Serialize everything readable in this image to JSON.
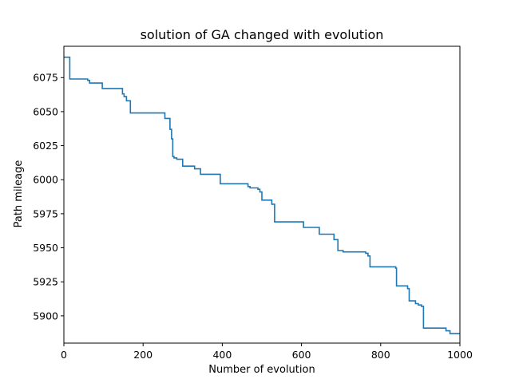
{
  "chart_data": {
    "type": "line",
    "title": "solution of GA changed with evolution",
    "xlabel": "Number of evolution",
    "ylabel": "Path mileage",
    "xlim": [
      0,
      1000
    ],
    "ylim": [
      5880,
      6098
    ],
    "xticks": [
      0,
      200,
      400,
      600,
      800,
      1000
    ],
    "yticks": [
      5900,
      5925,
      5950,
      5975,
      6000,
      6025,
      6050,
      6075
    ],
    "grid": false,
    "line_color": "#1f77b4",
    "series": [
      {
        "step": true,
        "x": [
          0,
          15,
          60,
          65,
          97,
          148,
          152,
          158,
          168,
          255,
          268,
          272,
          275,
          278,
          285,
          300,
          330,
          345,
          395,
          465,
          470,
          490,
          495,
          500,
          525,
          532,
          605,
          645,
          682,
          692,
          705,
          762,
          768,
          773,
          838,
          840,
          868,
          872,
          888,
          895,
          903,
          908,
          965,
          975,
          1000
        ],
        "y": [
          6090,
          6074,
          6073,
          6071,
          6067,
          6063,
          6061,
          6058,
          6049,
          6045,
          6037,
          6030,
          6017,
          6016,
          6015,
          6010,
          6008,
          6004,
          5997,
          5995,
          5994,
          5993,
          5991,
          5985,
          5982,
          5969,
          5965,
          5960,
          5956,
          5948,
          5947,
          5946,
          5944,
          5936,
          5935,
          5922,
          5920,
          5911,
          5909,
          5908,
          5907,
          5891,
          5889,
          5887,
          5887
        ]
      }
    ]
  }
}
